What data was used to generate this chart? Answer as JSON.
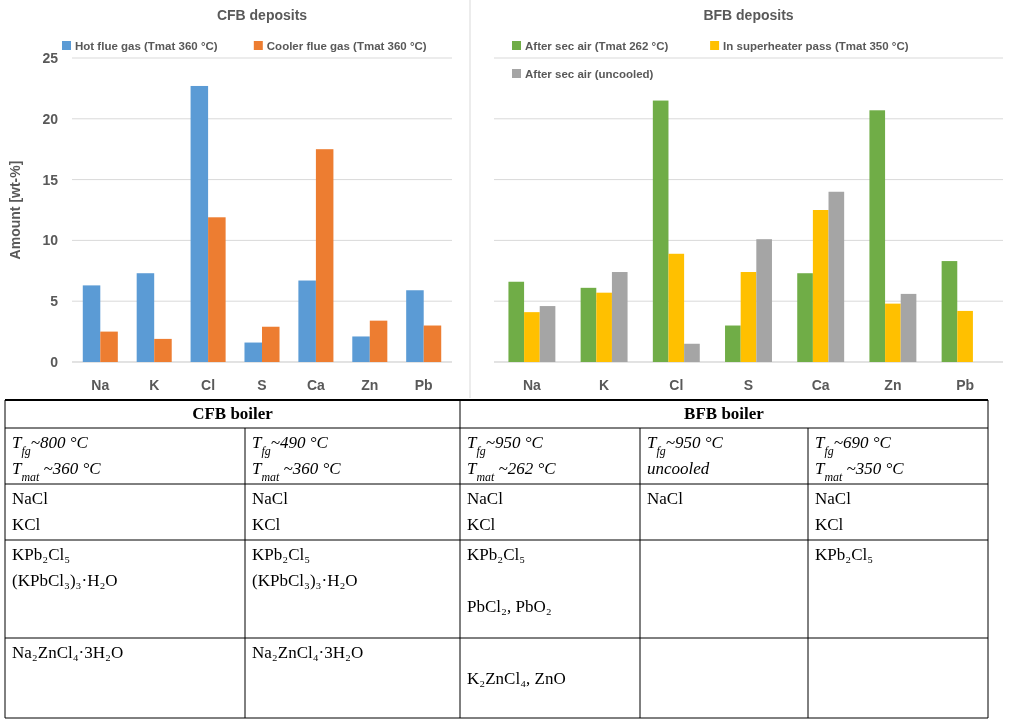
{
  "chart_data": [
    {
      "type": "bar",
      "title": "CFB deposits",
      "ylabel": "Amount [wt-%]",
      "categories": [
        "Na",
        "K",
        "Cl",
        "S",
        "Ca",
        "Zn",
        "Pb"
      ],
      "ylim": [
        0,
        25
      ],
      "yticks": [
        0,
        5,
        10,
        15,
        20,
        25
      ],
      "grid": "y",
      "legend": "top",
      "series": [
        {
          "name": "Hot flue gas (Tmat 360 °C)",
          "color": "#5b9bd5",
          "values": [
            6.3,
            7.3,
            22.7,
            1.6,
            6.7,
            2.1,
            5.9
          ]
        },
        {
          "name": "Cooler flue gas (Tmat 360 °C)",
          "color": "#ed7d31",
          "values": [
            2.5,
            1.9,
            11.9,
            2.9,
            17.5,
            3.4,
            3.0
          ]
        }
      ]
    },
    {
      "type": "bar",
      "title": "BFB deposits",
      "categories": [
        "Na",
        "K",
        "Cl",
        "S",
        "Ca",
        "Zn",
        "Pb"
      ],
      "ylim": [
        0,
        25
      ],
      "yticks": [
        0,
        5,
        10,
        15,
        20,
        25
      ],
      "grid": "y",
      "legend": "top",
      "tick_labels": "x",
      "series": [
        {
          "name": "After sec air (Tmat 262 °C)",
          "color": "#70ad47",
          "values": [
            6.6,
            6.1,
            21.5,
            3.0,
            7.3,
            20.7,
            8.3
          ]
        },
        {
          "name": "In superheater pass (Tmat 350 °C)",
          "color": "#ffc000",
          "values": [
            4.1,
            5.7,
            8.9,
            7.4,
            12.5,
            4.8,
            4.2
          ]
        },
        {
          "name": "After sec air (uncooled)",
          "color": "#a5a5a5",
          "values": [
            4.6,
            7.4,
            1.5,
            10.1,
            14.0,
            5.6,
            null
          ]
        }
      ]
    },
    {
      "type": "other",
      "annotations": [
        "CFB boiler",
        "BFB boiler",
        "T$_{fg}$~800 °C\nT$_{mat}$ ~360 °C",
        "T$_{fg}$~490 °C\nT$_{mat}$ ~360 °C",
        "T$_{fg}$~950 °C\nT$_{mat}$ ~262 °C",
        "T$_{fg}$~950 °C\nuncooled",
        "T$_{fg}$~690 °C\nT$_{mat}$ ~350 °C",
        "NaCl\nKCl",
        "NaCl\nKCl",
        "NaCl\nKCl",
        "NaCl",
        "NaCl\nKCl",
        "KPb₂Cl₅\n(KPbCl₃)₃·H₂O",
        "KPb₂Cl₅\n(KPbCl₃)₃·H₂O",
        "KPb₂Cl₅\n\nPbCl₂, PbO₂",
        null,
        "KPb₂Cl₅",
        "Na₂ZnCl₄·3H₂O",
        "Na₂ZnCl₄·3H₂O",
        "\nK₂ZnCl₄, ZnO",
        null,
        null
      ]
    }
  ]
}
